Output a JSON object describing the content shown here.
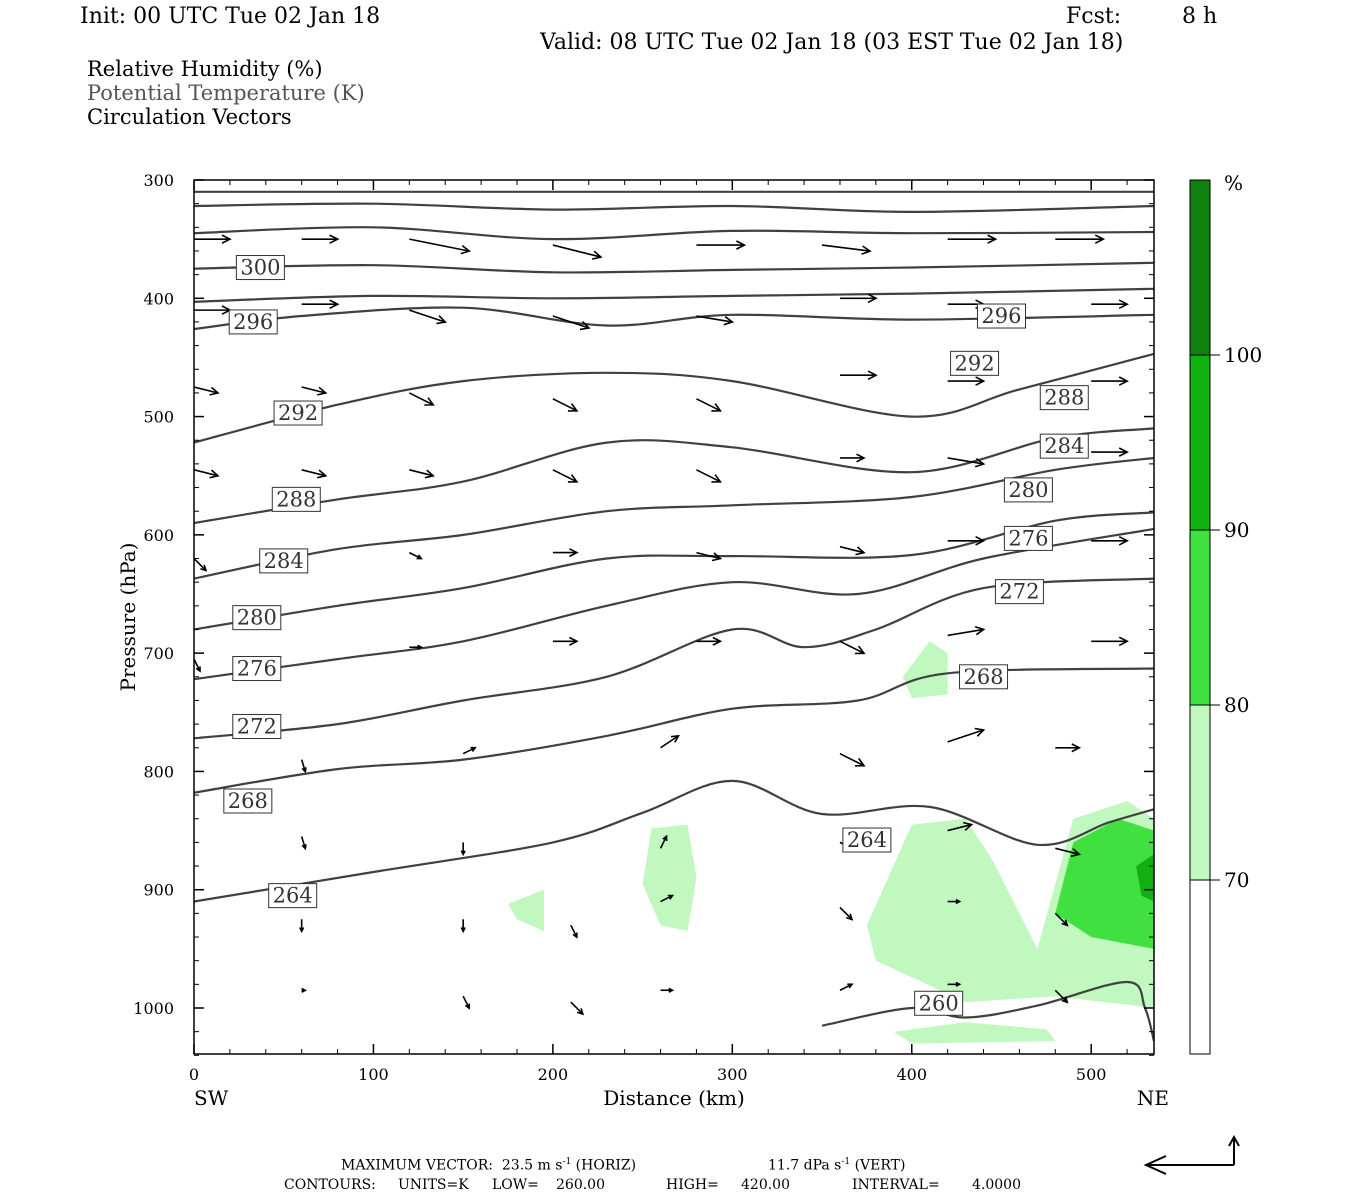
{
  "header": {
    "init": "Init: 00 UTC Tue 02 Jan 18",
    "fcst_label": "Fcst:",
    "fcst_value": "8 h",
    "valid": "Valid: 08 UTC Tue 02 Jan 18 (03 EST Tue 02 Jan 18)"
  },
  "legend": {
    "line1": "Relative Humidity (%)",
    "line2": "Potential Temperature (K)",
    "line3": "Circulation Vectors"
  },
  "footer": {
    "max_vector_label": "MAXIMUM VECTOR:",
    "horiz_value": "23.5 m s",
    "horiz_exp": "-1",
    "horiz_suffix": "(HORIZ)",
    "vert_value": "11.7 dPa s",
    "vert_exp": "-1",
    "vert_suffix": "(VERT)",
    "contours_label": "CONTOURS:",
    "units": "UNITS=K",
    "low_label": "LOW=",
    "low_value": "260.00",
    "high_label": "HIGH=",
    "high_value": "420.00",
    "interval_label": "INTERVAL=",
    "interval_value": "4.0000"
  },
  "colors": {
    "rh_70_80": "#c0f8c0",
    "rh_80_90": "#40e040",
    "rh_90_100": "#10b010",
    "rh_100": "#108010",
    "contour": "#404040",
    "axis": "#000000"
  },
  "chart_data": {
    "type": "cross-section",
    "xlabel": "Distance (km)",
    "ylabel": "Pressure (hPa)",
    "xlim": [
      0,
      535
    ],
    "ylim": [
      1040,
      300
    ],
    "xticks": [
      0,
      100,
      200,
      300,
      400,
      500
    ],
    "xtick_labels": [
      "0",
      "100",
      "200",
      "300",
      "400",
      "500"
    ],
    "yticks": [
      300,
      400,
      500,
      600,
      700,
      800,
      900,
      1000
    ],
    "ytick_labels": [
      "300",
      "400",
      "500",
      "600",
      "700",
      "800",
      "900",
      "1000"
    ],
    "left_end_label": "SW",
    "right_end_label": "NE",
    "colorbar": {
      "unit_label": "%",
      "levels": [
        70,
        80,
        90,
        100
      ],
      "level_labels": [
        "70",
        "80",
        "90",
        "100"
      ]
    },
    "theta_contours": [
      {
        "level": 296,
        "label": "296",
        "points": [
          [
            0,
            426
          ],
          [
            60,
            415
          ],
          [
            150,
            408
          ],
          [
            230,
            423
          ],
          [
            300,
            414
          ],
          [
            400,
            418
          ],
          [
            535,
            414
          ]
        ]
      },
      {
        "level": 292,
        "label": "292",
        "points": [
          [
            0,
            522
          ],
          [
            80,
            490
          ],
          [
            150,
            470
          ],
          [
            230,
            463
          ],
          [
            300,
            470
          ],
          [
            400,
            500
          ],
          [
            460,
            477
          ],
          [
            535,
            447
          ]
        ]
      },
      {
        "level": 288,
        "label": "288",
        "points": [
          [
            0,
            590
          ],
          [
            80,
            570
          ],
          [
            150,
            555
          ],
          [
            230,
            522
          ],
          [
            300,
            526
          ],
          [
            400,
            547
          ],
          [
            480,
            518
          ],
          [
            535,
            510
          ]
        ]
      },
      {
        "level": 284,
        "label": "284",
        "points": [
          [
            0,
            637
          ],
          [
            80,
            612
          ],
          [
            150,
            600
          ],
          [
            230,
            580
          ],
          [
            300,
            575
          ],
          [
            400,
            568
          ],
          [
            480,
            545
          ],
          [
            535,
            535
          ]
        ]
      },
      {
        "level": 280,
        "label": "280",
        "points": [
          [
            0,
            680
          ],
          [
            80,
            660
          ],
          [
            150,
            645
          ],
          [
            230,
            620
          ],
          [
            300,
            618
          ],
          [
            400,
            617
          ],
          [
            480,
            588
          ],
          [
            535,
            581
          ]
        ]
      },
      {
        "level": 276,
        "label": "276",
        "points": [
          [
            0,
            722
          ],
          [
            80,
            705
          ],
          [
            150,
            690
          ],
          [
            230,
            660
          ],
          [
            300,
            640
          ],
          [
            370,
            650
          ],
          [
            440,
            620
          ],
          [
            535,
            595
          ]
        ]
      },
      {
        "level": 272,
        "label": "272",
        "points": [
          [
            0,
            772
          ],
          [
            80,
            760
          ],
          [
            150,
            740
          ],
          [
            230,
            720
          ],
          [
            300,
            680
          ],
          [
            340,
            695
          ],
          [
            380,
            680
          ],
          [
            440,
            645
          ],
          [
            535,
            637
          ]
        ]
      },
      {
        "level": 268,
        "label": "268",
        "points": [
          [
            0,
            818
          ],
          [
            80,
            798
          ],
          [
            150,
            790
          ],
          [
            230,
            770
          ],
          [
            300,
            747
          ],
          [
            370,
            740
          ],
          [
            420,
            717
          ],
          [
            535,
            713
          ]
        ]
      },
      {
        "level": 264,
        "label": "264",
        "points": [
          [
            0,
            910
          ],
          [
            100,
            885
          ],
          [
            200,
            860
          ],
          [
            250,
            835
          ],
          [
            300,
            808
          ],
          [
            350,
            836
          ],
          [
            410,
            830
          ],
          [
            470,
            862
          ],
          [
            510,
            843
          ],
          [
            535,
            832
          ]
        ]
      },
      {
        "level": 260,
        "label": "260",
        "points": [
          [
            350,
            1015
          ],
          [
            400,
            1000
          ],
          [
            430,
            1008
          ],
          [
            470,
            998
          ],
          [
            520,
            978
          ],
          [
            530,
            1000
          ],
          [
            535,
            1028
          ]
        ]
      }
    ],
    "rh_regions": [
      {
        "level": 70,
        "points": [
          [
            395,
            720
          ],
          [
            410,
            690
          ],
          [
            420,
            700
          ],
          [
            420,
            735
          ],
          [
            400,
            738
          ]
        ]
      },
      {
        "level": 70,
        "points": [
          [
            255,
            848
          ],
          [
            275,
            845
          ],
          [
            280,
            890
          ],
          [
            275,
            935
          ],
          [
            260,
            930
          ],
          [
            250,
            895
          ]
        ]
      },
      {
        "level": 70,
        "points": [
          [
            175,
            912
          ],
          [
            195,
            900
          ],
          [
            195,
            935
          ],
          [
            180,
            925
          ]
        ]
      },
      {
        "level": 70,
        "points": [
          [
            375,
            930
          ],
          [
            400,
            845
          ],
          [
            430,
            840
          ],
          [
            445,
            875
          ],
          [
            470,
            950
          ],
          [
            490,
            840
          ],
          [
            520,
            825
          ],
          [
            535,
            840
          ],
          [
            535,
            1000
          ],
          [
            480,
            990
          ],
          [
            430,
            995
          ],
          [
            380,
            960
          ]
        ]
      },
      {
        "level": 80,
        "points": [
          [
            480,
            920
          ],
          [
            490,
            860
          ],
          [
            515,
            840
          ],
          [
            535,
            850
          ],
          [
            535,
            950
          ],
          [
            500,
            940
          ]
        ]
      },
      {
        "level": 90,
        "points": [
          [
            525,
            880
          ],
          [
            535,
            870
          ],
          [
            535,
            910
          ],
          [
            528,
            905
          ]
        ]
      },
      {
        "level": 70,
        "points": [
          [
            390,
            1020
          ],
          [
            430,
            1012
          ],
          [
            475,
            1018
          ],
          [
            480,
            1028
          ],
          [
            400,
            1030
          ]
        ]
      }
    ],
    "vectors": [
      {
        "x": 0,
        "p": 350,
        "u": 3,
        "w": 0
      },
      {
        "x": 60,
        "p": 350,
        "u": 3,
        "w": 0
      },
      {
        "x": 120,
        "p": 350,
        "u": 5,
        "w": -1
      },
      {
        "x": 200,
        "p": 355,
        "u": 4,
        "w": -1
      },
      {
        "x": 280,
        "p": 355,
        "u": 4,
        "w": 0
      },
      {
        "x": 350,
        "p": 355,
        "u": 4,
        "w": -0.5
      },
      {
        "x": 420,
        "p": 350,
        "u": 4,
        "w": 0
      },
      {
        "x": 480,
        "p": 350,
        "u": 4,
        "w": 0
      },
      {
        "x": 0,
        "p": 410,
        "u": 3,
        "w": 0
      },
      {
        "x": 60,
        "p": 405,
        "u": 3,
        "w": 0
      },
      {
        "x": 120,
        "p": 410,
        "u": 3,
        "w": -1
      },
      {
        "x": 200,
        "p": 415,
        "u": 3,
        "w": -1
      },
      {
        "x": 280,
        "p": 415,
        "u": 3,
        "w": -0.5
      },
      {
        "x": 360,
        "p": 400,
        "u": 3,
        "w": 0
      },
      {
        "x": 420,
        "p": 405,
        "u": 3,
        "w": 0
      },
      {
        "x": 500,
        "p": 405,
        "u": 3,
        "w": 0
      },
      {
        "x": 0,
        "p": 475,
        "u": 2,
        "w": -0.5
      },
      {
        "x": 60,
        "p": 475,
        "u": 2,
        "w": -0.5
      },
      {
        "x": 120,
        "p": 480,
        "u": 2,
        "w": -1
      },
      {
        "x": 200,
        "p": 485,
        "u": 2,
        "w": -1
      },
      {
        "x": 280,
        "p": 485,
        "u": 2,
        "w": -1
      },
      {
        "x": 360,
        "p": 465,
        "u": 3,
        "w": 0
      },
      {
        "x": 420,
        "p": 470,
        "u": 3,
        "w": 0
      },
      {
        "x": 500,
        "p": 470,
        "u": 3,
        "w": 0
      },
      {
        "x": 0,
        "p": 545,
        "u": 2,
        "w": -0.5
      },
      {
        "x": 60,
        "p": 545,
        "u": 2,
        "w": -0.5
      },
      {
        "x": 120,
        "p": 545,
        "u": 2,
        "w": -0.5
      },
      {
        "x": 200,
        "p": 545,
        "u": 2,
        "w": -1
      },
      {
        "x": 280,
        "p": 545,
        "u": 2,
        "w": -1
      },
      {
        "x": 360,
        "p": 535,
        "u": 2,
        "w": 0
      },
      {
        "x": 420,
        "p": 535,
        "u": 3,
        "w": -0.5
      },
      {
        "x": 500,
        "p": 530,
        "u": 3,
        "w": 0
      },
      {
        "x": 0,
        "p": 620,
        "u": 1,
        "w": -1
      },
      {
        "x": 120,
        "p": 615,
        "u": 1,
        "w": -0.5
      },
      {
        "x": 200,
        "p": 615,
        "u": 2,
        "w": 0
      },
      {
        "x": 280,
        "p": 615,
        "u": 2,
        "w": -0.5
      },
      {
        "x": 360,
        "p": 610,
        "u": 2,
        "w": -0.5
      },
      {
        "x": 420,
        "p": 605,
        "u": 3,
        "w": 0
      },
      {
        "x": 500,
        "p": 605,
        "u": 3,
        "w": 0
      },
      {
        "x": 0,
        "p": 705,
        "u": 0.5,
        "w": -1
      },
      {
        "x": 120,
        "p": 695,
        "u": 1,
        "w": 0
      },
      {
        "x": 200,
        "p": 690,
        "u": 2,
        "w": 0
      },
      {
        "x": 280,
        "p": 690,
        "u": 2,
        "w": 0
      },
      {
        "x": 360,
        "p": 690,
        "u": 2,
        "w": -1
      },
      {
        "x": 420,
        "p": 685,
        "u": 3,
        "w": 0.5
      },
      {
        "x": 500,
        "p": 690,
        "u": 3,
        "w": 0
      },
      {
        "x": 60,
        "p": 790,
        "u": 0.3,
        "w": -1
      },
      {
        "x": 150,
        "p": 785,
        "u": 1,
        "w": 0.5
      },
      {
        "x": 260,
        "p": 780,
        "u": 1.5,
        "w": 1
      },
      {
        "x": 360,
        "p": 785,
        "u": 2,
        "w": -1
      },
      {
        "x": 420,
        "p": 775,
        "u": 3,
        "w": 1
      },
      {
        "x": 480,
        "p": 780,
        "u": 2,
        "w": 0
      },
      {
        "x": 60,
        "p": 855,
        "u": 0.3,
        "w": -1
      },
      {
        "x": 150,
        "p": 860,
        "u": 0,
        "w": -1
      },
      {
        "x": 260,
        "p": 865,
        "u": 0.5,
        "w": 1
      },
      {
        "x": 360,
        "p": 860,
        "u": 1,
        "w": -0.5
      },
      {
        "x": 420,
        "p": 850,
        "u": 2,
        "w": 0.5
      },
      {
        "x": 480,
        "p": 865,
        "u": 2,
        "w": -0.5
      },
      {
        "x": 60,
        "p": 925,
        "u": 0,
        "w": -1
      },
      {
        "x": 150,
        "p": 925,
        "u": 0,
        "w": -1
      },
      {
        "x": 210,
        "p": 930,
        "u": 0.5,
        "w": -1
      },
      {
        "x": 260,
        "p": 910,
        "u": 1,
        "w": 0.5
      },
      {
        "x": 360,
        "p": 915,
        "u": 1,
        "w": -1
      },
      {
        "x": 420,
        "p": 910,
        "u": 1,
        "w": 0
      },
      {
        "x": 480,
        "p": 920,
        "u": 1,
        "w": -1
      },
      {
        "x": 60,
        "p": 985,
        "u": 0.3,
        "w": 0
      },
      {
        "x": 150,
        "p": 990,
        "u": 0.5,
        "w": -1
      },
      {
        "x": 210,
        "p": 995,
        "u": 1,
        "w": -1
      },
      {
        "x": 260,
        "p": 985,
        "u": 1,
        "w": 0
      },
      {
        "x": 360,
        "p": 985,
        "u": 1,
        "w": 0.5
      },
      {
        "x": 420,
        "p": 980,
        "u": 1,
        "w": 0
      },
      {
        "x": 480,
        "p": 985,
        "u": 1,
        "w": -1
      }
    ]
  }
}
